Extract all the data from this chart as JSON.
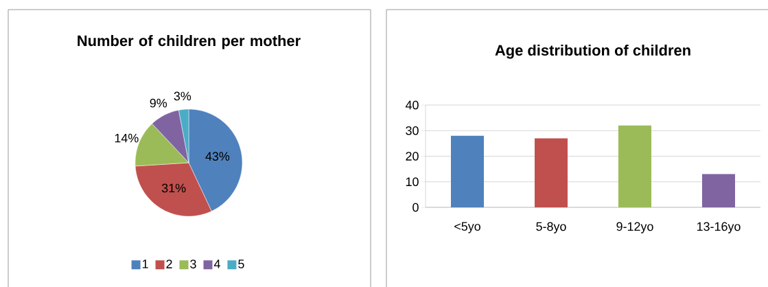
{
  "chart_data": [
    {
      "type": "pie",
      "title": "Number of children per mother",
      "categories": [
        "1",
        "2",
        "3",
        "4",
        "5"
      ],
      "values": [
        43,
        31,
        14,
        9,
        3
      ],
      "colors": [
        "#4f81bd",
        "#c0504d",
        "#9bbb59",
        "#8064a2",
        "#4bacc6"
      ],
      "value_labels": [
        "43%",
        "31%",
        "14%",
        "9%",
        "3%"
      ],
      "legend": "bottom"
    },
    {
      "type": "bar",
      "title": "Age distribution of children",
      "categories": [
        "<5yo",
        "5-8yo",
        "9-12yo",
        "13-16yo"
      ],
      "values": [
        28,
        27,
        32,
        13
      ],
      "colors": [
        "#4f81bd",
        "#c0504d",
        "#9bbb59",
        "#8064a2"
      ],
      "ylim": [
        0,
        40
      ],
      "yticks": [
        0,
        10,
        20,
        30,
        40
      ],
      "grid": "y"
    }
  ]
}
